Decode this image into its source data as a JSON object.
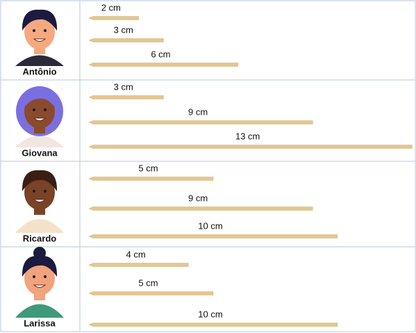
{
  "rows": [
    {
      "name": "Antônio",
      "sticks": [
        {
          "value": 2,
          "label": "2 cm"
        },
        {
          "value": 3,
          "label": "3 cm"
        },
        {
          "value": 6,
          "label": "6 cm"
        }
      ]
    },
    {
      "name": "Giovana",
      "sticks": [
        {
          "value": 3,
          "label": "3 cm"
        },
        {
          "value": 9,
          "label": "9 cm"
        },
        {
          "value": 13,
          "label": "13 cm"
        }
      ]
    },
    {
      "name": "Ricardo",
      "sticks": [
        {
          "value": 5,
          "label": "5 cm"
        },
        {
          "value": 9,
          "label": "9 cm"
        },
        {
          "value": 10,
          "label": "10 cm"
        }
      ]
    },
    {
      "name": "Larissa",
      "sticks": [
        {
          "value": 4,
          "label": "4 cm"
        },
        {
          "value": 5,
          "label": "5 cm"
        },
        {
          "value": 10,
          "label": "10 cm"
        }
      ]
    }
  ]
}
